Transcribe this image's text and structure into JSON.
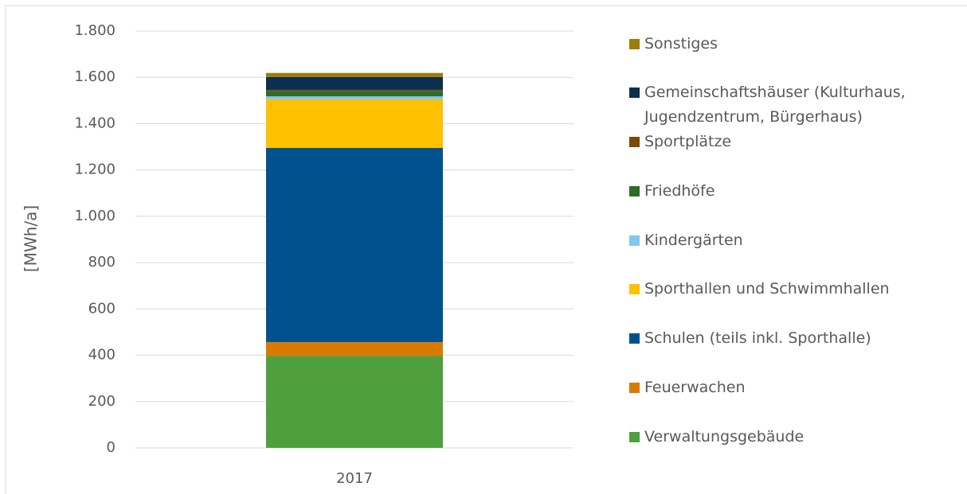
{
  "chart_data": {
    "type": "stacked_bar",
    "categories": [
      "2017"
    ],
    "y_label": "[MWh/a]",
    "series": [
      {
        "name": "Verwaltungsgebäude",
        "color": "#4e9f3d",
        "values": [
          397
        ]
      },
      {
        "name": "Feuerwachen",
        "color": "#d97a00",
        "values": [
          60
        ]
      },
      {
        "name": "Schulen (teils inkl. Sporthalle)",
        "color": "#00518e",
        "values": [
          838
        ]
      },
      {
        "name": "Sporthallen und Schwimmhallen",
        "color": "#ffc000",
        "values": [
          210
        ]
      },
      {
        "name": "Kindergärten",
        "color": "#7fc8f0",
        "values": [
          13
        ]
      },
      {
        "name": "Friedhöfe",
        "color": "#2f6b2a",
        "values": [
          24
        ]
      },
      {
        "name": "Sportplätze",
        "color": "#7a4a00",
        "values": [
          4
        ]
      },
      {
        "name": "Gemeinschaftshäuser (Kulturhaus, Jugendzentrum, Bürgerhaus)",
        "color": "#0b2f4e",
        "values": [
          55
        ]
      },
      {
        "name": "Sonstiges",
        "color": "#9a7d0a",
        "values": [
          18
        ]
      }
    ],
    "ylim": [
      0,
      1800
    ],
    "yticks": [
      0,
      200,
      400,
      600,
      800,
      {
        "value": 1000,
        "label": "1.000"
      },
      {
        "value": 1200,
        "label": "1.200"
      },
      {
        "value": 1400,
        "label": "1.400"
      },
      {
        "value": 1600,
        "label": "1.600"
      },
      {
        "value": 1800,
        "label": "1.800"
      }
    ],
    "grid": true,
    "legend": "right"
  }
}
